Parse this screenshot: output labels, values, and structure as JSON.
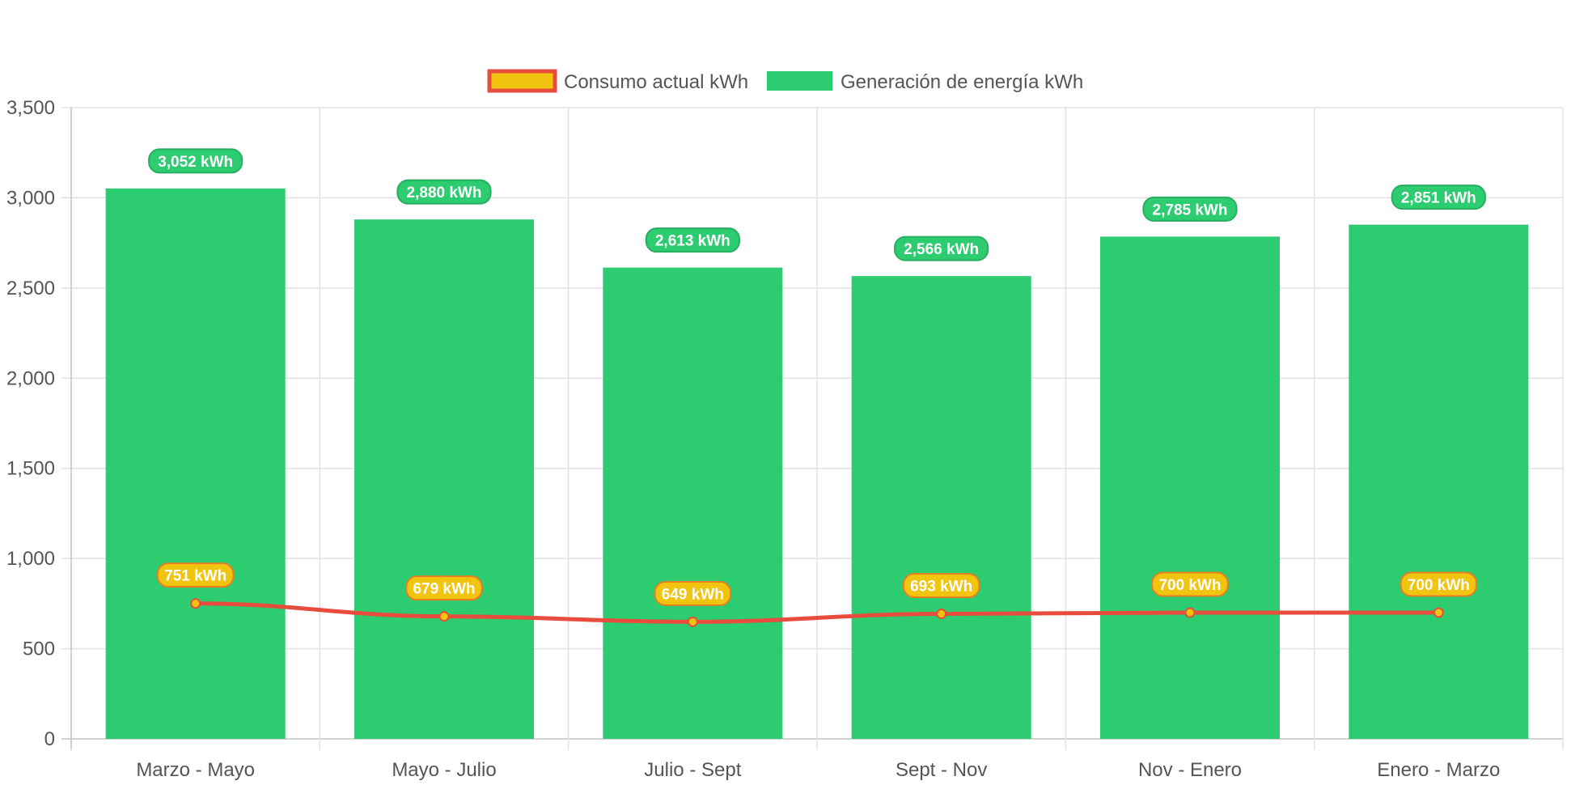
{
  "chart_data": {
    "type": "bar",
    "title": "",
    "xlabel": "",
    "ylabel": "",
    "categories": [
      "Marzo - Mayo",
      "Mayo - Julio",
      "Julio - Sept",
      "Sept - Nov",
      "Nov - Enero",
      "Enero - Marzo"
    ],
    "ylim": [
      0,
      3500
    ],
    "yticks": [
      "0",
      "500",
      "1,000",
      "1,500",
      "2,000",
      "2,500",
      "3,000",
      "3,500"
    ],
    "grid": true,
    "legend_position": "top-center",
    "series": [
      {
        "name": "Consumo actual kWh",
        "type": "line",
        "values": [
          751,
          679,
          649,
          693,
          700,
          700
        ],
        "labels": [
          "751 kWh",
          "679 kWh",
          "649 kWh",
          "693 kWh",
          "700 kWh",
          "700 kWh"
        ],
        "line_color": "#e74c3c",
        "fill_color": "#f1c40f"
      },
      {
        "name": "Generación de energía kWh",
        "type": "bar",
        "values": [
          3052,
          2880,
          2613,
          2566,
          2785,
          2851
        ],
        "labels": [
          "3,052 kWh",
          "2,880 kWh",
          "2,613 kWh",
          "2,566 kWh",
          "2,785 kWh",
          "2,851 kWh"
        ],
        "color": "#2ecc71"
      }
    ]
  }
}
